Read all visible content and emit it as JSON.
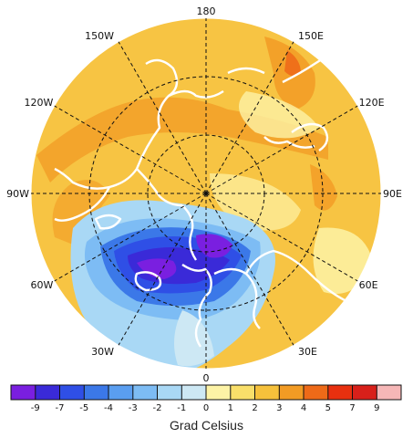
{
  "map": {
    "projection": "polar-stereographic-north",
    "colors": {
      "background_field": "#f7c443",
      "ocean_edge": "#ffffff",
      "coastline": "#ffffff",
      "grid": "#111111"
    },
    "longitude_labels": [
      {
        "text": "180",
        "lon": 180
      },
      {
        "text": "150E",
        "lon": 150
      },
      {
        "text": "120E",
        "lon": 120
      },
      {
        "text": "90E",
        "lon": 90
      },
      {
        "text": "60E",
        "lon": 60
      },
      {
        "text": "30E",
        "lon": 30
      },
      {
        "text": "0",
        "lon": 0
      },
      {
        "text": "30W",
        "lon": -30
      },
      {
        "text": "60W",
        "lon": -60
      },
      {
        "text": "90W",
        "lon": -90
      },
      {
        "text": "120W",
        "lon": -120
      },
      {
        "text": "150W",
        "lon": -150
      }
    ],
    "latitude_circles": [
      30,
      60
    ]
  },
  "colorbar": {
    "ticks": [
      "-9",
      "-7",
      "-5",
      "-4",
      "-3",
      "-2",
      "-1",
      "0",
      "1",
      "2",
      "3",
      "4",
      "5",
      "7",
      "9"
    ],
    "colors": [
      "#7a1fe0",
      "#3a2ad8",
      "#2f4fe6",
      "#3b78e8",
      "#5a9ef0",
      "#7dbcf4",
      "#a9d8f5",
      "#cde8f4",
      "#fdf3a6",
      "#f9df6a",
      "#f6c13b",
      "#f29b24",
      "#ee6a18",
      "#e8300f",
      "#d8201a",
      "#f6b7b7"
    ],
    "unit_label": "Grad Celsius"
  }
}
